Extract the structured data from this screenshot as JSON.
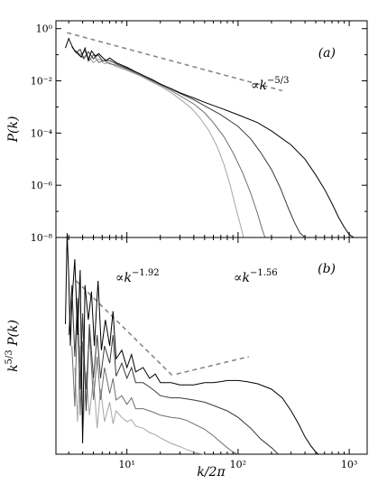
{
  "chart_data": [
    {
      "panel_label": "(a)",
      "type": "line",
      "xlabel": "k/2π",
      "ylabel": "P(k)",
      "xscale": "log",
      "yscale": "log",
      "xlim": [
        2.3,
        1450
      ],
      "ylim": [
        1e-08,
        2
      ],
      "y_tick_labels": [
        "10⁰",
        "10⁻²",
        "10⁻⁴",
        "10⁻⁶",
        "10⁻⁸"
      ],
      "y_ticks": [
        1,
        0.01,
        0.0001,
        1e-06,
        1e-08
      ],
      "annotation": {
        "prefix": "∝",
        "base": "k",
        "exponent": "−5/3"
      },
      "reference_lines": [
        {
          "points": [
            [
              2.9,
              0.7
            ],
            [
              250,
              0.0042
            ]
          ],
          "color": "#888888",
          "dash": true
        }
      ],
      "series": [
        {
          "color": "#000000",
          "points": [
            [
              2.8,
              0.18
            ],
            [
              3.0,
              0.42
            ],
            [
              3.2,
              0.22
            ],
            [
              3.4,
              0.14
            ],
            [
              3.6,
              0.11
            ],
            [
              3.9,
              0.08
            ],
            [
              4.2,
              0.18
            ],
            [
              4.5,
              0.06
            ],
            [
              4.8,
              0.14
            ],
            [
              5.2,
              0.09
            ],
            [
              5.6,
              0.11
            ],
            [
              6,
              0.08
            ],
            [
              6.5,
              0.06
            ],
            [
              7,
              0.075
            ],
            [
              8,
              0.05
            ],
            [
              9,
              0.04
            ],
            [
              10,
              0.033
            ],
            [
              12,
              0.022
            ],
            [
              14,
              0.016
            ],
            [
              17,
              0.011
            ],
            [
              20,
              0.0075
            ],
            [
              25,
              0.005
            ],
            [
              30,
              0.0035
            ],
            [
              40,
              0.0022
            ],
            [
              50,
              0.0015
            ],
            [
              70,
              0.0009
            ],
            [
              100,
              0.0005
            ],
            [
              150,
              0.00025
            ],
            [
              200,
              0.00012
            ],
            [
              300,
              3.5e-05
            ],
            [
              400,
              1e-05
            ],
            [
              500,
              2.5e-06
            ],
            [
              600,
              7e-07
            ],
            [
              700,
              2e-07
            ],
            [
              800,
              6e-08
            ],
            [
              900,
              2.5e-08
            ],
            [
              1000,
              1.3e-08
            ],
            [
              1100,
              8e-09
            ]
          ]
        },
        {
          "color": "#3a3a3a",
          "points": [
            [
              3.2,
              0.2
            ],
            [
              3.5,
              0.12
            ],
            [
              3.8,
              0.16
            ],
            [
              4.1,
              0.07
            ],
            [
              4.5,
              0.13
            ],
            [
              5,
              0.07
            ],
            [
              5.5,
              0.1
            ],
            [
              6,
              0.06
            ],
            [
              7,
              0.06
            ],
            [
              8,
              0.045
            ],
            [
              10,
              0.03
            ],
            [
              13,
              0.019
            ],
            [
              16,
              0.012
            ],
            [
              20,
              0.0075
            ],
            [
              25,
              0.0048
            ],
            [
              30,
              0.0033
            ],
            [
              40,
              0.0019
            ],
            [
              50,
              0.0011
            ],
            [
              70,
              0.0005
            ],
            [
              100,
              0.00018
            ],
            [
              130,
              6e-05
            ],
            [
              160,
              1.8e-05
            ],
            [
              200,
              4e-06
            ],
            [
              240,
              8e-07
            ],
            [
              280,
              1.5e-07
            ],
            [
              320,
              4e-08
            ],
            [
              360,
              1.5e-08
            ],
            [
              400,
              8e-09
            ]
          ]
        },
        {
          "color": "#6e6e6e",
          "points": [
            [
              3.4,
              0.15
            ],
            [
              3.8,
              0.1
            ],
            [
              4.2,
              0.14
            ],
            [
              4.6,
              0.06
            ],
            [
              5,
              0.1
            ],
            [
              5.6,
              0.05
            ],
            [
              6.2,
              0.06
            ],
            [
              7,
              0.045
            ],
            [
              8,
              0.04
            ],
            [
              10,
              0.028
            ],
            [
              13,
              0.017
            ],
            [
              16,
              0.011
            ],
            [
              20,
              0.007
            ],
            [
              25,
              0.0042
            ],
            [
              30,
              0.0027
            ],
            [
              40,
              0.0013
            ],
            [
              50,
              0.0006
            ],
            [
              60,
              0.00025
            ],
            [
              75,
              7e-05
            ],
            [
              90,
              1.8e-05
            ],
            [
              110,
              3e-06
            ],
            [
              130,
              5e-07
            ],
            [
              150,
              8e-08
            ],
            [
              165,
              2e-08
            ],
            [
              175,
              8e-09
            ]
          ]
        },
        {
          "color": "#a6a6a6",
          "points": [
            [
              3.6,
              0.12
            ],
            [
              4,
              0.08
            ],
            [
              4.4,
              0.1
            ],
            [
              5,
              0.05
            ],
            [
              5.6,
              0.07
            ],
            [
              6.3,
              0.045
            ],
            [
              7,
              0.05
            ],
            [
              8,
              0.035
            ],
            [
              10,
              0.025
            ],
            [
              13,
              0.016
            ],
            [
              16,
              0.01
            ],
            [
              20,
              0.0062
            ],
            [
              25,
              0.0035
            ],
            [
              30,
              0.002
            ],
            [
              38,
              0.0009
            ],
            [
              45,
              0.0004
            ],
            [
              55,
              0.00012
            ],
            [
              65,
              3e-05
            ],
            [
              75,
              6e-06
            ],
            [
              85,
              1e-06
            ],
            [
              95,
              1.5e-07
            ],
            [
              105,
              3e-08
            ],
            [
              112,
              8e-09
            ]
          ]
        }
      ]
    },
    {
      "panel_label": "(b)",
      "type": "line",
      "xlabel": "k/2π",
      "ylabel": "k^{5/3} P(k)",
      "xscale": "log",
      "xlim": [
        2.3,
        1450
      ],
      "x_tick_labels": [
        "10¹",
        "10²",
        "10³"
      ],
      "x_ticks": [
        10,
        100,
        1000
      ],
      "annotations": [
        {
          "prefix": "∝",
          "base": "k",
          "exponent": "−1.92"
        },
        {
          "prefix": "∝",
          "base": "k",
          "exponent": "−1.56"
        }
      ],
      "reference_lines": [
        {
          "points": [
            [
              3.5,
              0.8
            ],
            [
              26,
              0.36
            ]
          ],
          "color": "#888888",
          "dash": true
        },
        {
          "points": [
            [
              28,
              0.37
            ],
            [
              125,
              0.45
            ]
          ],
          "color": "#888888",
          "dash": true
        }
      ],
      "series": [
        {
          "color": "#000000",
          "points": [
            [
              2.8,
              0.6
            ],
            [
              2.9,
              1.02
            ],
            [
              3.0,
              0.82
            ],
            [
              3.1,
              0.5
            ],
            [
              3.2,
              0.7
            ],
            [
              3.4,
              0.9
            ],
            [
              3.6,
              0.55
            ],
            [
              3.8,
              0.85
            ],
            [
              4.0,
              0.05
            ],
            [
              4.2,
              0.78
            ],
            [
              4.5,
              0.62
            ],
            [
              4.8,
              0.75
            ],
            [
              5.1,
              0.5
            ],
            [
              5.5,
              0.8
            ],
            [
              5.9,
              0.48
            ],
            [
              6.4,
              0.62
            ],
            [
              7,
              0.5
            ],
            [
              7.5,
              0.66
            ],
            [
              8,
              0.44
            ],
            [
              9,
              0.48
            ],
            [
              10,
              0.4
            ],
            [
              11,
              0.46
            ],
            [
              12,
              0.38
            ],
            [
              14,
              0.4
            ],
            [
              16,
              0.35
            ],
            [
              18,
              0.37
            ],
            [
              20,
              0.33
            ],
            [
              25,
              0.33
            ],
            [
              30,
              0.32
            ],
            [
              40,
              0.32
            ],
            [
              50,
              0.33
            ],
            [
              60,
              0.33
            ],
            [
              70,
              0.335
            ],
            [
              80,
              0.34
            ],
            [
              90,
              0.34
            ],
            [
              100,
              0.34
            ],
            [
              120,
              0.335
            ],
            [
              150,
              0.325
            ],
            [
              200,
              0.3
            ],
            [
              250,
              0.26
            ],
            [
              300,
              0.2
            ],
            [
              350,
              0.14
            ],
            [
              400,
              0.08
            ],
            [
              450,
              0.04
            ],
            [
              500,
              0.01
            ],
            [
              530,
              0.0
            ]
          ]
        },
        {
          "color": "#3a3a3a",
          "points": [
            [
              3.0,
              0.55
            ],
            [
              3.2,
              0.78
            ],
            [
              3.4,
              0.45
            ],
            [
              3.6,
              0.72
            ],
            [
              3.8,
              0.3
            ],
            [
              4.0,
              0.65
            ],
            [
              4.3,
              0.2
            ],
            [
              4.6,
              0.6
            ],
            [
              5.0,
              0.35
            ],
            [
              5.4,
              0.55
            ],
            [
              5.8,
              0.35
            ],
            [
              6.3,
              0.5
            ],
            [
              7,
              0.42
            ],
            [
              7.5,
              0.55
            ],
            [
              8,
              0.36
            ],
            [
              9,
              0.42
            ],
            [
              10,
              0.35
            ],
            [
              11,
              0.4
            ],
            [
              12,
              0.33
            ],
            [
              14,
              0.33
            ],
            [
              16,
              0.31
            ],
            [
              18,
              0.29
            ],
            [
              20,
              0.27
            ],
            [
              25,
              0.26
            ],
            [
              30,
              0.26
            ],
            [
              40,
              0.25
            ],
            [
              50,
              0.24
            ],
            [
              60,
              0.225
            ],
            [
              80,
              0.2
            ],
            [
              100,
              0.17
            ],
            [
              130,
              0.12
            ],
            [
              160,
              0.07
            ],
            [
              200,
              0.03
            ],
            [
              230,
              0.0
            ]
          ]
        },
        {
          "color": "#6e6e6e",
          "points": [
            [
              3.2,
              0.5
            ],
            [
              3.4,
              0.22
            ],
            [
              3.6,
              0.68
            ],
            [
              3.8,
              0.18
            ],
            [
              4.0,
              0.52
            ],
            [
              4.3,
              0.3
            ],
            [
              4.6,
              0.56
            ],
            [
              5.0,
              0.25
            ],
            [
              5.4,
              0.45
            ],
            [
              5.8,
              0.25
            ],
            [
              6.3,
              0.4
            ],
            [
              7,
              0.28
            ],
            [
              7.5,
              0.35
            ],
            [
              8,
              0.25
            ],
            [
              9,
              0.27
            ],
            [
              10,
              0.23
            ],
            [
              11,
              0.26
            ],
            [
              12,
              0.21
            ],
            [
              14,
              0.21
            ],
            [
              16,
              0.2
            ],
            [
              18,
              0.19
            ],
            [
              20,
              0.18
            ],
            [
              25,
              0.17
            ],
            [
              30,
              0.165
            ],
            [
              35,
              0.155
            ],
            [
              40,
              0.14
            ],
            [
              50,
              0.115
            ],
            [
              60,
              0.085
            ],
            [
              70,
              0.055
            ],
            [
              80,
              0.03
            ],
            [
              90,
              0.01
            ],
            [
              100,
              0.0
            ]
          ]
        },
        {
          "color": "#a6a6a6",
          "points": [
            [
              3.4,
              0.4
            ],
            [
              3.6,
              0.15
            ],
            [
              3.8,
              0.5
            ],
            [
              4.0,
              0.08
            ],
            [
              4.3,
              0.38
            ],
            [
              4.6,
              0.18
            ],
            [
              5.0,
              0.35
            ],
            [
              5.4,
              0.12
            ],
            [
              5.8,
              0.3
            ],
            [
              6.3,
              0.15
            ],
            [
              7,
              0.24
            ],
            [
              7.5,
              0.14
            ],
            [
              8,
              0.2
            ],
            [
              9,
              0.17
            ],
            [
              10,
              0.15
            ],
            [
              11,
              0.16
            ],
            [
              12,
              0.13
            ],
            [
              14,
              0.12
            ],
            [
              16,
              0.1
            ],
            [
              18,
              0.09
            ],
            [
              20,
              0.075
            ],
            [
              25,
              0.05
            ],
            [
              30,
              0.035
            ],
            [
              35,
              0.02
            ],
            [
              40,
              0.01
            ],
            [
              45,
              0.003
            ],
            [
              50,
              0.0
            ]
          ]
        }
      ]
    }
  ]
}
